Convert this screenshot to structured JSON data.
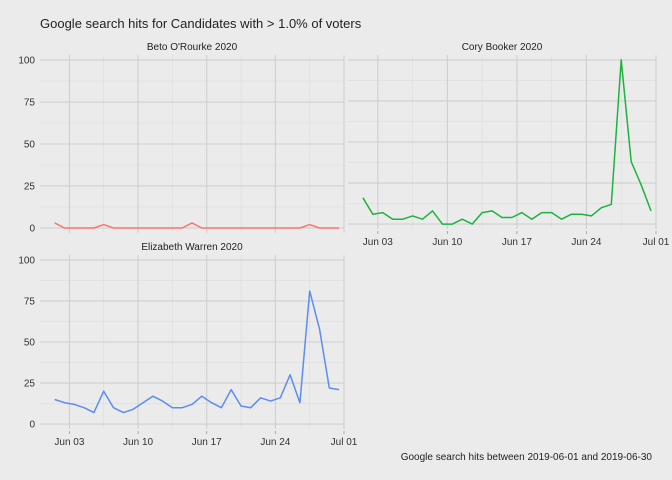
{
  "title": "Google search hits for Candidates with > 1.0% of voters",
  "caption": "Google search hits between 2019-06-01 and 2019-06-30",
  "chart_data": {
    "type": "line",
    "title": "Google search hits for Candidates with > 1.0% of voters",
    "xlabel": "",
    "ylabel": "",
    "x_tick_labels": [
      "Jun 03",
      "Jun 10",
      "Jun 17",
      "Jun 24",
      "Jul 01"
    ],
    "y_ticks": [
      0,
      25,
      50,
      75,
      100
    ],
    "ylim": [
      -3,
      103
    ],
    "xlim": [
      "2019-05-31",
      "2019-07-01"
    ],
    "grid": true,
    "panels": [
      {
        "name": "Beto O'Rourke 2020",
        "color": "#f8766d",
        "x": [
          "2019-06-01",
          "2019-06-02",
          "2019-06-03",
          "2019-06-04",
          "2019-06-05",
          "2019-06-06",
          "2019-06-07",
          "2019-06-08",
          "2019-06-09",
          "2019-06-10",
          "2019-06-11",
          "2019-06-12",
          "2019-06-13",
          "2019-06-14",
          "2019-06-15",
          "2019-06-16",
          "2019-06-17",
          "2019-06-18",
          "2019-06-19",
          "2019-06-20",
          "2019-06-21",
          "2019-06-22",
          "2019-06-23",
          "2019-06-24",
          "2019-06-25",
          "2019-06-26",
          "2019-06-27",
          "2019-06-28",
          "2019-06-29",
          "2019-06-30"
        ],
        "values": [
          3,
          0,
          0,
          0,
          0,
          2,
          0,
          0,
          0,
          0,
          0,
          0,
          0,
          0,
          3,
          0,
          0,
          0,
          0,
          0,
          0,
          0,
          0,
          0,
          0,
          0,
          2,
          0,
          0,
          0
        ]
      },
      {
        "name": "Cory Booker 2020",
        "color": "#1db33f",
        "x": [
          "2019-06-01",
          "2019-06-02",
          "2019-06-03",
          "2019-06-04",
          "2019-06-05",
          "2019-06-06",
          "2019-06-07",
          "2019-06-08",
          "2019-06-09",
          "2019-06-10",
          "2019-06-11",
          "2019-06-12",
          "2019-06-13",
          "2019-06-14",
          "2019-06-15",
          "2019-06-16",
          "2019-06-17",
          "2019-06-18",
          "2019-06-19",
          "2019-06-20",
          "2019-06-21",
          "2019-06-22",
          "2019-06-23",
          "2019-06-24",
          "2019-06-25",
          "2019-06-26",
          "2019-06-27",
          "2019-06-28",
          "2019-06-29",
          "2019-06-30"
        ],
        "values": [
          16,
          6,
          7,
          3,
          3,
          5,
          3,
          8,
          0,
          0,
          3,
          0,
          7,
          8,
          4,
          4,
          7,
          3,
          7,
          7,
          3,
          6,
          6,
          5,
          10,
          12,
          100,
          38,
          24,
          8
        ]
      },
      {
        "name": "Elizabeth Warren 2020",
        "color": "#5b8df0",
        "x": [
          "2019-06-01",
          "2019-06-02",
          "2019-06-03",
          "2019-06-04",
          "2019-06-05",
          "2019-06-06",
          "2019-06-07",
          "2019-06-08",
          "2019-06-09",
          "2019-06-10",
          "2019-06-11",
          "2019-06-12",
          "2019-06-13",
          "2019-06-14",
          "2019-06-15",
          "2019-06-16",
          "2019-06-17",
          "2019-06-18",
          "2019-06-19",
          "2019-06-20",
          "2019-06-21",
          "2019-06-22",
          "2019-06-23",
          "2019-06-24",
          "2019-06-25",
          "2019-06-26",
          "2019-06-27",
          "2019-06-28",
          "2019-06-29",
          "2019-06-30"
        ],
        "values": [
          15,
          13,
          12,
          10,
          7,
          20,
          10,
          7,
          9,
          13,
          17,
          14,
          10,
          10,
          12,
          17,
          13,
          10,
          21,
          11,
          10,
          16,
          14,
          16,
          30,
          13,
          81,
          58,
          22,
          21
        ]
      }
    ]
  }
}
